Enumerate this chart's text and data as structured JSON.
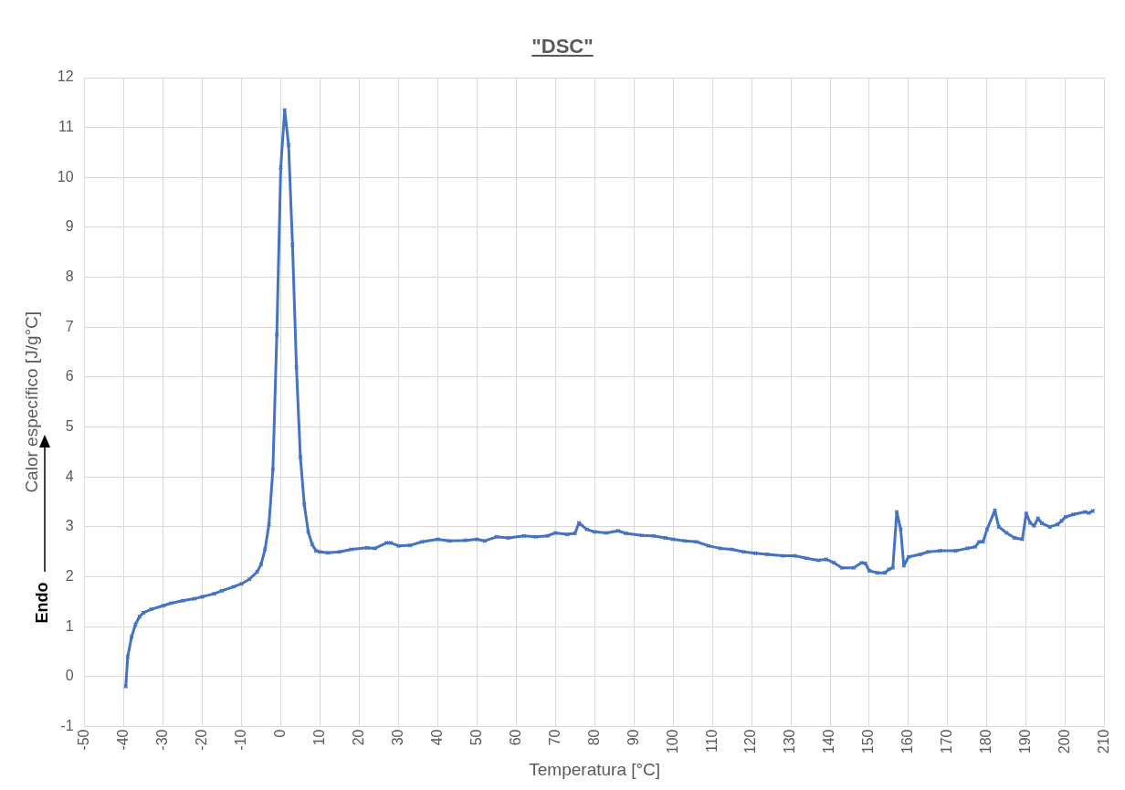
{
  "chart_data": {
    "type": "line",
    "title": "\"DSC\"",
    "xlabel": "Temperatura [°C]",
    "ylabel": "Calor específico [J/g°C]",
    "annotations": [
      "Endo"
    ],
    "x": [
      -39.5,
      -39,
      -38,
      -37,
      -36,
      -35,
      -33,
      -30,
      -28,
      -25,
      -22,
      -20,
      -17,
      -15,
      -12,
      -10,
      -8,
      -6,
      -5,
      -4,
      -3,
      -2,
      -1,
      0,
      1,
      2,
      3,
      4,
      5,
      6,
      7,
      8,
      9,
      10,
      12,
      15,
      18,
      22,
      24,
      27,
      28,
      30,
      33,
      36,
      40,
      43,
      47,
      50,
      52,
      55,
      58,
      62,
      65,
      68,
      70,
      73,
      75,
      76,
      78,
      80,
      83,
      86,
      88,
      92,
      95,
      98,
      100,
      103,
      106,
      109,
      112,
      115,
      118,
      121,
      124,
      128,
      131,
      134,
      137,
      139,
      141,
      143,
      146,
      148,
      149,
      150,
      152,
      154,
      155,
      156,
      157,
      158,
      158.8,
      160,
      163,
      165,
      168,
      172,
      175,
      177,
      178,
      179,
      180,
      182,
      183,
      185,
      187,
      189,
      190,
      191,
      192,
      193,
      194,
      196,
      198,
      199,
      200,
      202,
      205,
      206,
      207
    ],
    "series": [
      {
        "color": "#4472c4",
        "values": [
          -0.2,
          0.4,
          0.8,
          1.05,
          1.2,
          1.28,
          1.35,
          1.42,
          1.47,
          1.52,
          1.56,
          1.6,
          1.66,
          1.72,
          1.8,
          1.86,
          1.95,
          2.1,
          2.25,
          2.55,
          3.05,
          4.15,
          6.85,
          10.2,
          11.35,
          10.65,
          8.65,
          6.2,
          4.4,
          3.45,
          2.9,
          2.65,
          2.52,
          2.5,
          2.48,
          2.5,
          2.55,
          2.58,
          2.57,
          2.68,
          2.68,
          2.62,
          2.63,
          2.7,
          2.75,
          2.72,
          2.73,
          2.75,
          2.72,
          2.8,
          2.78,
          2.82,
          2.8,
          2.82,
          2.88,
          2.85,
          2.87,
          3.08,
          2.95,
          2.9,
          2.88,
          2.92,
          2.87,
          2.83,
          2.82,
          2.78,
          2.75,
          2.72,
          2.7,
          2.62,
          2.57,
          2.55,
          2.5,
          2.47,
          2.45,
          2.42,
          2.42,
          2.37,
          2.33,
          2.35,
          2.28,
          2.18,
          2.18,
          2.28,
          2.27,
          2.12,
          2.08,
          2.08,
          2.15,
          2.18,
          3.3,
          2.95,
          2.22,
          2.4,
          2.45,
          2.5,
          2.52,
          2.52,
          2.57,
          2.6,
          2.7,
          2.7,
          2.95,
          3.33,
          3.0,
          2.88,
          2.78,
          2.75,
          3.27,
          3.08,
          3.02,
          3.17,
          3.07,
          3.0,
          3.05,
          3.12,
          3.2,
          3.25,
          3.3,
          3.28,
          3.32
        ]
      }
    ],
    "xlim": [
      -50,
      210
    ],
    "xticks": [
      -50,
      -40,
      -30,
      -20,
      -10,
      0,
      10,
      20,
      30,
      40,
      50,
      60,
      70,
      80,
      90,
      100,
      110,
      120,
      130,
      140,
      150,
      160,
      170,
      180,
      190,
      200,
      210
    ],
    "ylim": [
      -1,
      12
    ],
    "yticks": [
      -1,
      0,
      1,
      2,
      3,
      4,
      5,
      6,
      7,
      8,
      9,
      10,
      11,
      12
    ],
    "grid": true,
    "legend": false,
    "marker": "cross",
    "line_style": "solid"
  }
}
